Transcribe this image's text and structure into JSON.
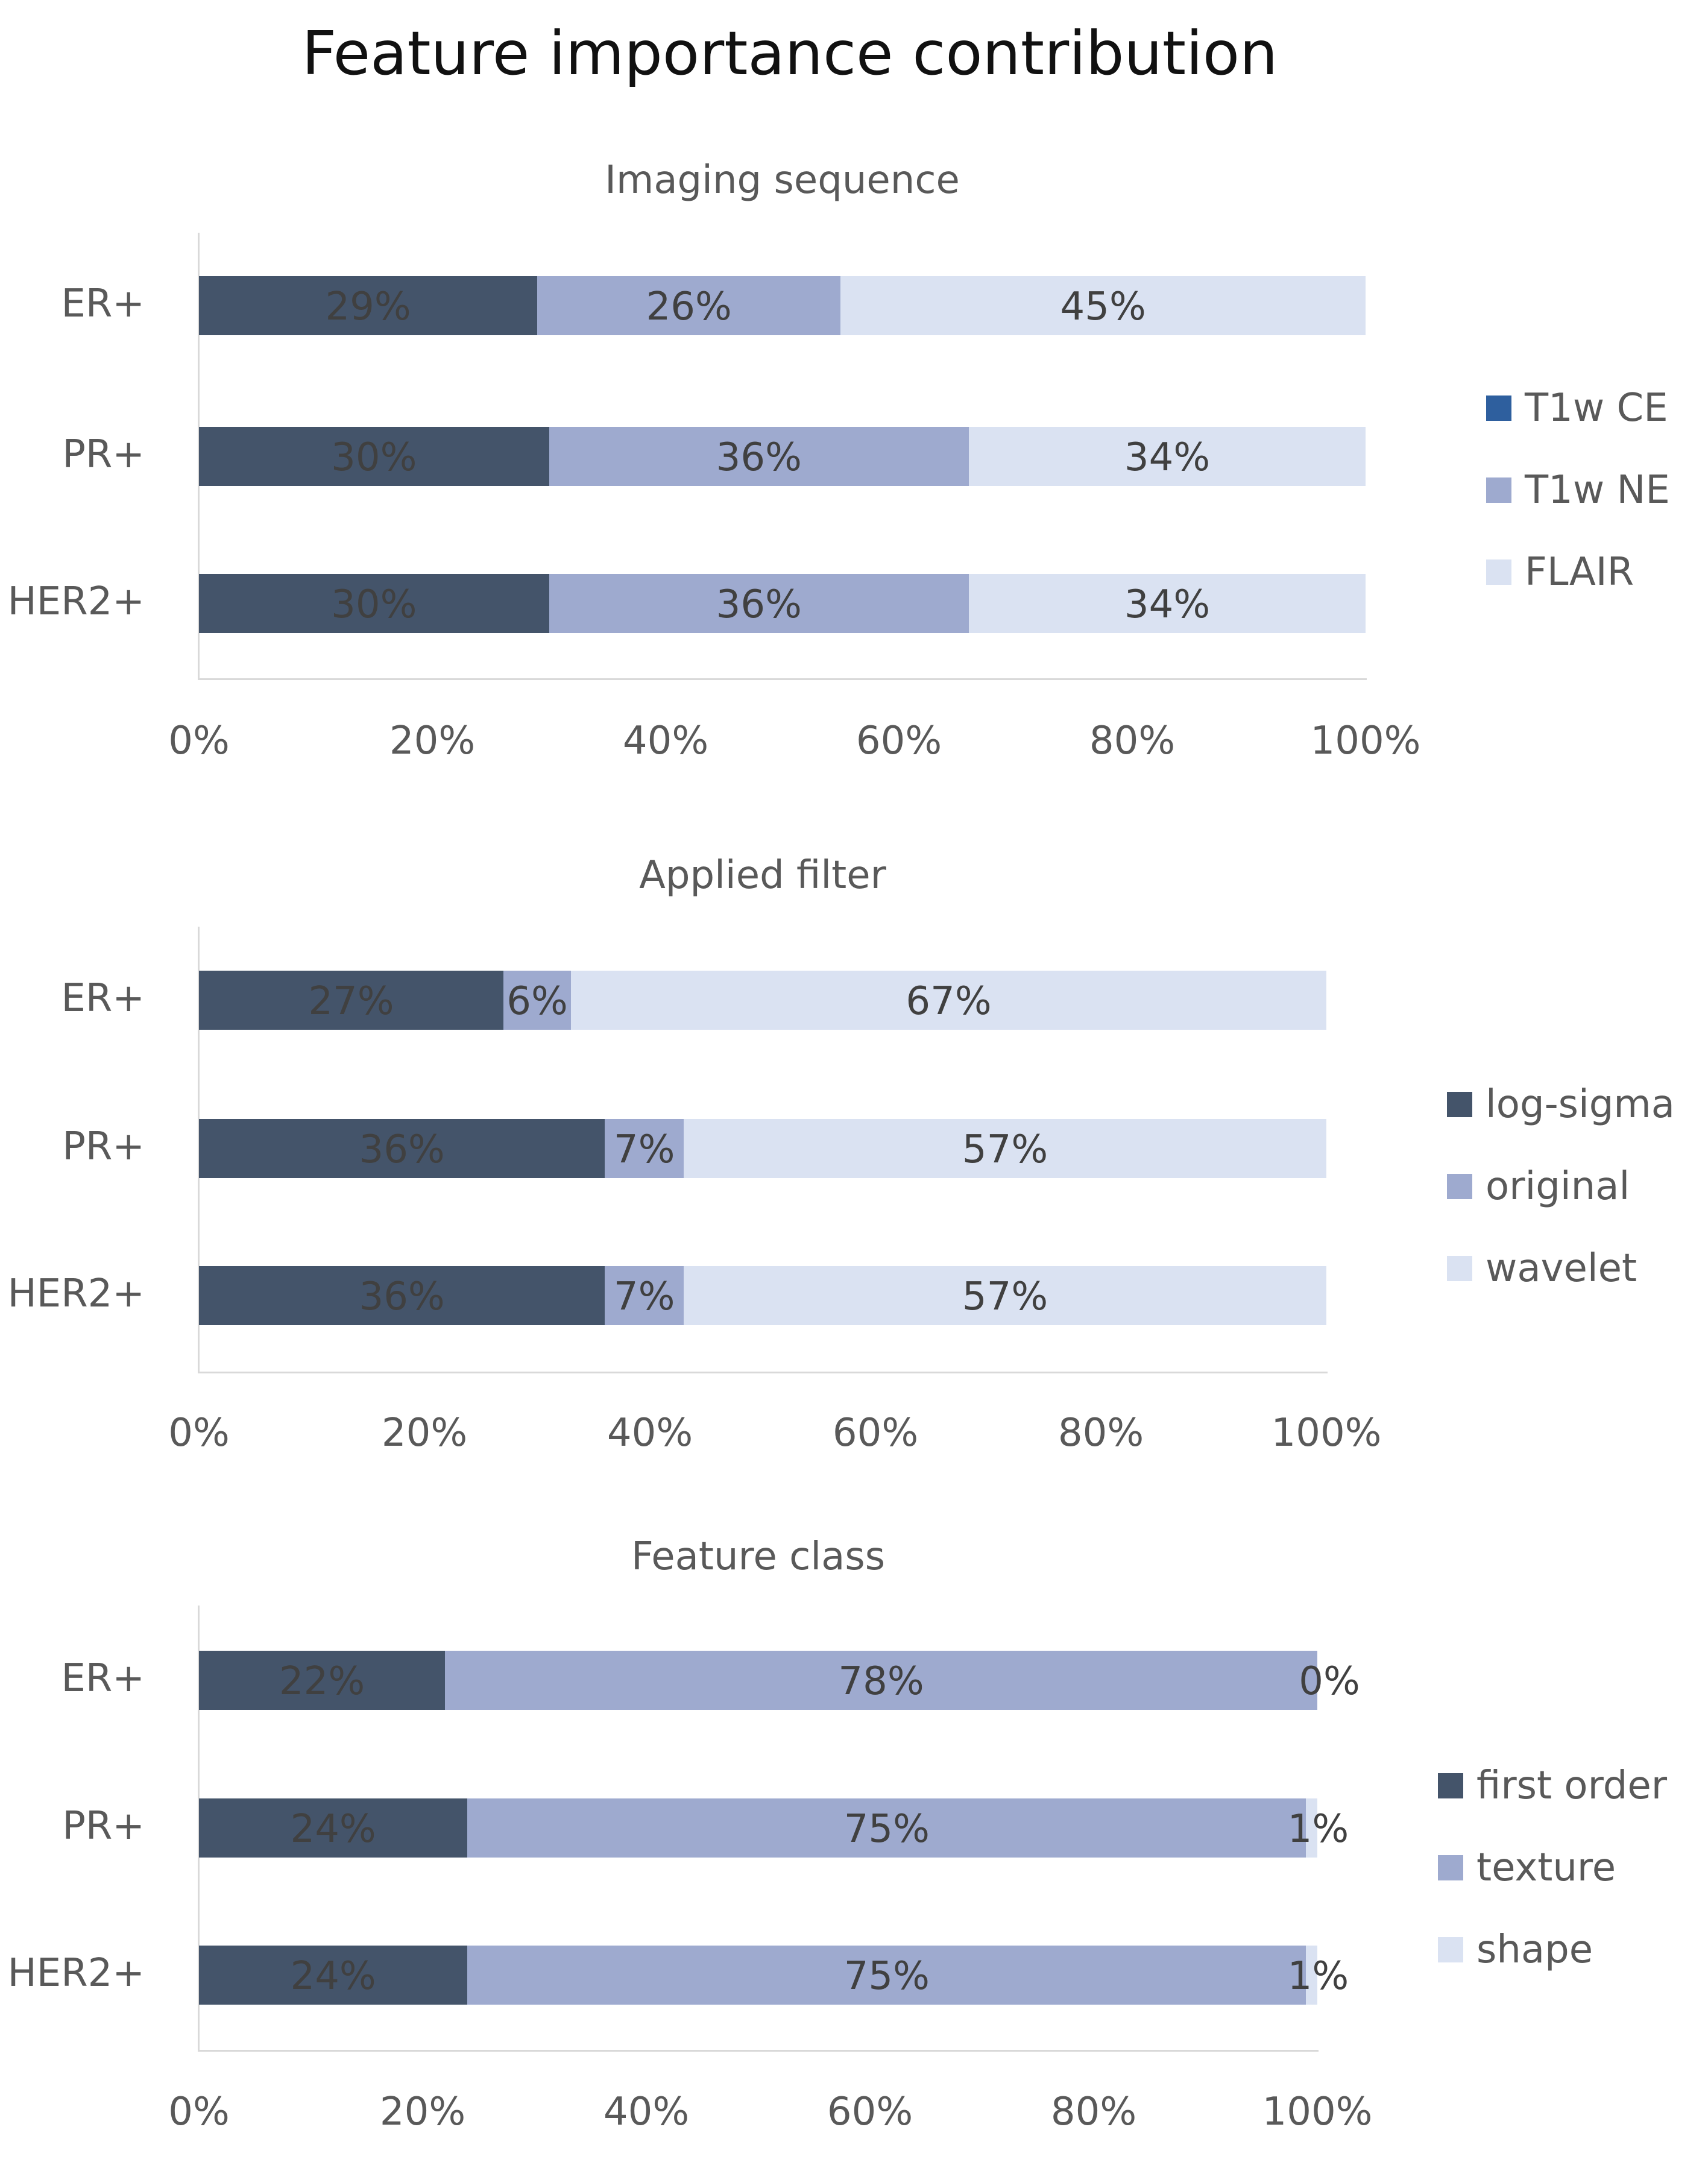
{
  "title": "Feature importance contribution",
  "chart_data": [
    {
      "type": "bar",
      "orientation": "horizontal",
      "stacked": "percent",
      "title": "Imaging sequence",
      "categories": [
        "ER+",
        "PR+",
        "HER2+"
      ],
      "series": [
        {
          "name": "T1w CE",
          "values": [
            29,
            30,
            30
          ],
          "labels": [
            "29%",
            "30%",
            "30%"
          ],
          "color": "#44546a",
          "legend_color": "#2e5f9e"
        },
        {
          "name": "T1w NE",
          "values": [
            26,
            36,
            36
          ],
          "labels": [
            "26%",
            "36%",
            "36%"
          ],
          "color": "#9eaacf",
          "legend_color": "#9eaacf"
        },
        {
          "name": "FLAIR",
          "values": [
            45,
            34,
            34
          ],
          "labels": [
            "45%",
            "34%",
            "34%"
          ],
          "color": "#dae2f2",
          "legend_color": "#dae2f2"
        }
      ],
      "xticks": [
        "0%",
        "20%",
        "40%",
        "60%",
        "80%",
        "100%"
      ],
      "xlim": [
        0,
        100
      ],
      "legend_position": "right"
    },
    {
      "type": "bar",
      "orientation": "horizontal",
      "stacked": "percent",
      "title": "Applied filter",
      "categories": [
        "ER+",
        "PR+",
        "HER2+"
      ],
      "series": [
        {
          "name": "log-sigma",
          "values": [
            27,
            36,
            36
          ],
          "labels": [
            "27%",
            "36%",
            "36%"
          ],
          "color": "#44546a",
          "legend_color": "#44546a"
        },
        {
          "name": "original",
          "values": [
            6,
            7,
            7
          ],
          "labels": [
            "6%",
            "7%",
            "7%"
          ],
          "color": "#9eaacf",
          "legend_color": "#9eaacf"
        },
        {
          "name": "wavelet",
          "values": [
            67,
            57,
            57
          ],
          "labels": [
            "67%",
            "57%",
            "57%"
          ],
          "color": "#dae2f2",
          "legend_color": "#dae2f2"
        }
      ],
      "xticks": [
        "0%",
        "20%",
        "40%",
        "60%",
        "80%",
        "100%"
      ],
      "xlim": [
        0,
        100
      ],
      "legend_position": "right"
    },
    {
      "type": "bar",
      "orientation": "horizontal",
      "stacked": "percent",
      "title": "Feature class",
      "categories": [
        "ER+",
        "PR+",
        "HER2+"
      ],
      "series": [
        {
          "name": "first order",
          "values": [
            22,
            24,
            24
          ],
          "labels": [
            "22%",
            "24%",
            "24%"
          ],
          "color": "#44546a",
          "legend_color": "#44546a"
        },
        {
          "name": "texture",
          "values": [
            78,
            75,
            75
          ],
          "labels": [
            "78%",
            "75%",
            "75%"
          ],
          "color": "#9eaacf",
          "legend_color": "#9eaacf"
        },
        {
          "name": "shape",
          "values": [
            0,
            1,
            1
          ],
          "labels": [
            "0%",
            "1%",
            "1%"
          ],
          "color": "#dae2f2",
          "legend_color": "#dae2f2"
        }
      ],
      "xticks": [
        "0%",
        "20%",
        "40%",
        "60%",
        "80%",
        "100%"
      ],
      "xlim": [
        0,
        100
      ],
      "legend_position": "right"
    }
  ]
}
